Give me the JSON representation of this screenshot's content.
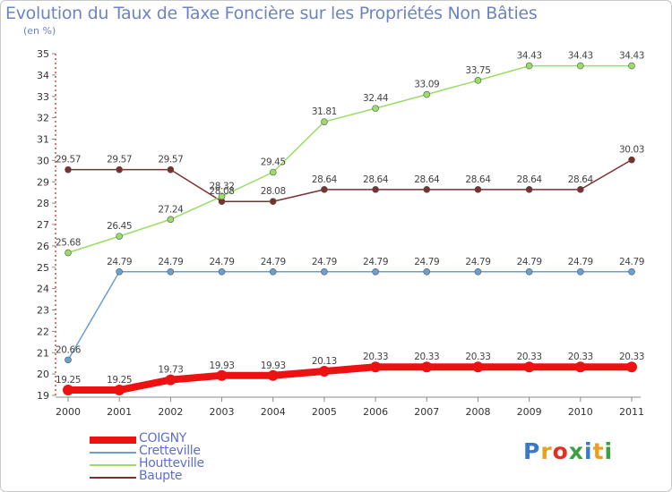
{
  "header": {
    "title": "Evolution du Taux de Taxe Foncière sur les Propriétés Non Bâties",
    "unit": "(en %)"
  },
  "logo": {
    "text": "Proxiti",
    "colors": [
      "#3a78c8",
      "#e8a020",
      "#e03020",
      "#3aa040",
      "#3a78c8",
      "#e8a020",
      "#3aa040"
    ]
  },
  "chart_data": {
    "type": "line",
    "x": [
      "2000",
      "2001",
      "2002",
      "2003",
      "2004",
      "2005",
      "2006",
      "2007",
      "2008",
      "2009",
      "2010",
      "2011"
    ],
    "ylim": [
      19,
      35
    ],
    "yticks": [
      "19",
      "20",
      "21",
      "22",
      "23",
      "24",
      "25",
      "26",
      "27",
      "28",
      "29",
      "30",
      "31",
      "32",
      "33",
      "34",
      "35"
    ],
    "grid": false,
    "legend": "bottom-left",
    "series": [
      {
        "name": "COIGNY",
        "color": "#ee1111",
        "values": [
          19.25,
          19.25,
          19.73,
          19.93,
          19.93,
          20.13,
          20.33,
          20.33,
          20.33,
          20.33,
          20.33,
          20.33
        ],
        "labels": [
          "19.25",
          "19.25",
          "19.73",
          "19.93",
          "19.93",
          "20.13",
          "20.33",
          "20.33",
          "20.33",
          "20.33",
          "20.33",
          "20.33"
        ]
      },
      {
        "name": "Cretteville",
        "color": "#6aa0d0",
        "values": [
          20.66,
          24.79,
          24.79,
          24.79,
          24.79,
          24.79,
          24.79,
          24.79,
          24.79,
          24.79,
          24.79,
          24.79
        ],
        "labels": [
          "20.66",
          "24.79",
          "24.79",
          "24.79",
          "24.79",
          "24.79",
          "24.79",
          "24.79",
          "24.79",
          "24.79",
          "24.79",
          "24.79"
        ]
      },
      {
        "name": "Houtteville",
        "color": "#99dd66",
        "values": [
          25.68,
          26.45,
          27.24,
          28.32,
          29.45,
          31.81,
          32.44,
          33.09,
          33.75,
          34.43,
          34.43,
          34.43
        ],
        "labels": [
          "25.68",
          "26.45",
          "27.24",
          "28.32",
          "29.45",
          "31.81",
          "32.44",
          "33.09",
          "33.75",
          "34.43",
          "34.43",
          "34.43"
        ]
      },
      {
        "name": "Baupte",
        "color": "#7a3030",
        "values": [
          29.57,
          29.57,
          29.57,
          28.08,
          28.08,
          28.64,
          28.64,
          28.64,
          28.64,
          28.64,
          28.64,
          30.03
        ],
        "labels": [
          "29.57",
          "29.57",
          "29.57",
          "28.08",
          "28.08",
          "28.64",
          "28.64",
          "28.64",
          "28.64",
          "28.64",
          "28.64",
          "30.03"
        ]
      }
    ]
  }
}
